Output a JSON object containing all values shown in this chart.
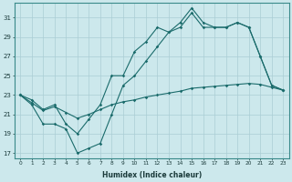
{
  "xlabel": "Humidex (Indice chaleur)",
  "bg_color": "#cce8ec",
  "grid_color": "#aacdd4",
  "line_color": "#1a6b6b",
  "xlim": [
    -0.5,
    23.5
  ],
  "ylim": [
    16.5,
    32.5
  ],
  "xticks": [
    0,
    1,
    2,
    3,
    4,
    5,
    6,
    7,
    8,
    9,
    10,
    11,
    12,
    13,
    14,
    15,
    16,
    17,
    18,
    19,
    20,
    21,
    22,
    23
  ],
  "yticks": [
    17,
    19,
    21,
    23,
    25,
    27,
    29,
    31
  ],
  "line1_y": [
    23,
    22,
    20,
    20,
    19.5,
    17,
    17.5,
    18,
    21,
    24,
    25,
    26.5,
    28,
    29.5,
    30,
    31.5,
    30,
    30,
    30,
    30.5,
    30,
    27,
    24,
    23.5
  ],
  "line2_y": [
    23,
    22.5,
    21.5,
    22,
    20,
    19,
    20.5,
    22,
    25,
    25,
    27.5,
    28.5,
    30,
    29.5,
    30.5,
    32,
    30.5,
    30,
    30,
    30.5,
    30,
    27,
    24,
    23.5
  ],
  "line3_y": [
    23,
    22.2,
    21.4,
    21.8,
    21.2,
    20.6,
    21.0,
    21.5,
    22.0,
    22.3,
    22.5,
    22.8,
    23.0,
    23.2,
    23.4,
    23.7,
    23.8,
    23.9,
    24.0,
    24.1,
    24.2,
    24.1,
    23.8,
    23.5
  ]
}
